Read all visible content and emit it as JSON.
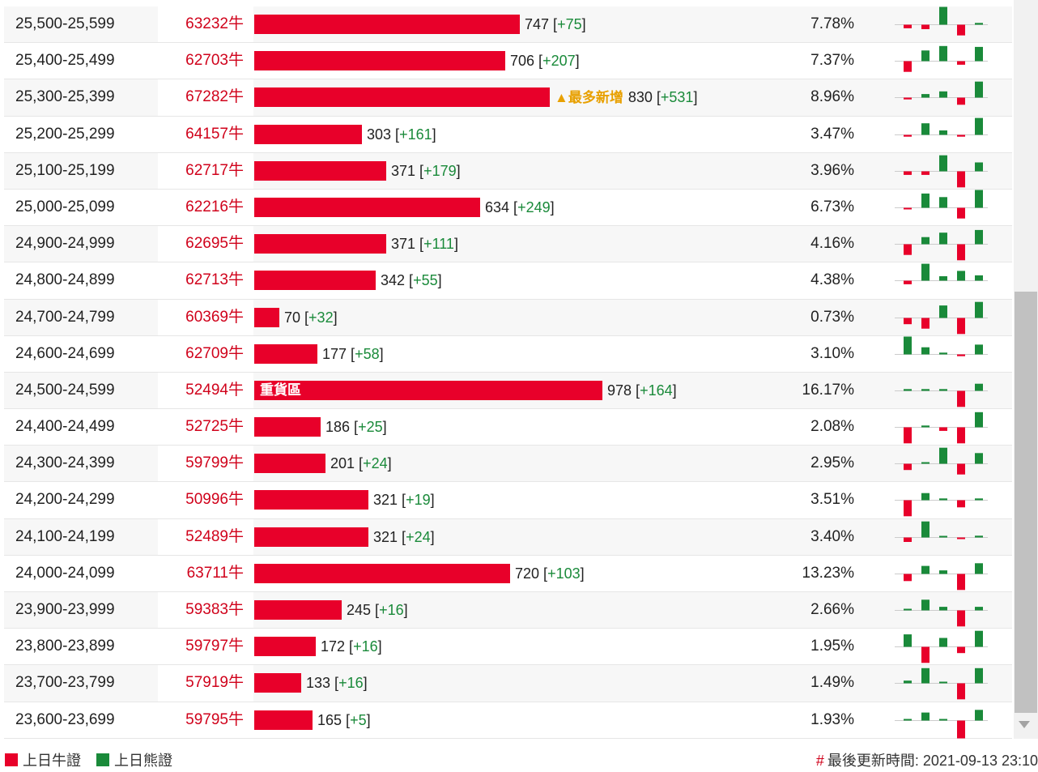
{
  "colors": {
    "bull": "#e8002a",
    "bear": "#1a8a3a",
    "badge": "#e8a000"
  },
  "legend": {
    "bull": "上日牛證",
    "bear": "上日熊證"
  },
  "update": {
    "hash": "#",
    "label": "最後更新時間: 2021-09-13 23:10"
  },
  "rows": [
    {
      "range": "25,500-25,599",
      "code": "63232牛",
      "count": "747",
      "change": "+75",
      "pct": "7.78%",
      "spark": [
        -0.2,
        -0.25,
        1.0,
        -0.6,
        0.1
      ]
    },
    {
      "range": "25,400-25,499",
      "code": "62703牛",
      "count": "706",
      "change": "+207",
      "pct": "7.37%",
      "spark": [
        -0.6,
        0.6,
        0.85,
        -0.2,
        0.8
      ]
    },
    {
      "range": "25,300-25,399",
      "code": "67282牛",
      "count": "830",
      "change": "+531",
      "pct": "8.96%",
      "badge": "▲最多新增",
      "spark": [
        -0.1,
        0.2,
        0.35,
        -0.4,
        0.9
      ]
    },
    {
      "range": "25,200-25,299",
      "code": "64157牛",
      "count": "303",
      "change": "+161",
      "pct": "3.47%",
      "spark": [
        -0.1,
        0.65,
        0.25,
        -0.1,
        0.95
      ]
    },
    {
      "range": "25,100-25,199",
      "code": "62717牛",
      "count": "371",
      "change": "+179",
      "pct": "3.96%",
      "spark": [
        -0.2,
        -0.2,
        0.9,
        -0.9,
        0.5
      ]
    },
    {
      "range": "25,000-25,099",
      "code": "62216牛",
      "count": "634",
      "change": "+249",
      "pct": "6.73%",
      "spark": [
        -0.05,
        0.8,
        0.6,
        -0.6,
        1.0
      ]
    },
    {
      "range": "24,900-24,999",
      "code": "62695牛",
      "count": "371",
      "change": "+111",
      "pct": "4.16%",
      "spark": [
        -0.6,
        0.4,
        0.65,
        -0.9,
        0.8
      ]
    },
    {
      "range": "24,800-24,899",
      "code": "62713牛",
      "count": "342",
      "change": "+55",
      "pct": "4.38%",
      "spark": [
        -0.2,
        0.95,
        0.25,
        0.55,
        0.3
      ]
    },
    {
      "range": "24,700-24,799",
      "code": "60369牛",
      "count": "70",
      "change": "+32",
      "pct": "0.73%",
      "spark": [
        -0.35,
        -0.6,
        0.7,
        -0.9,
        0.9
      ]
    },
    {
      "range": "24,600-24,699",
      "code": "62709牛",
      "count": "177",
      "change": "+58",
      "pct": "3.10%",
      "spark": [
        1.0,
        0.4,
        0.1,
        -0.1,
        0.55
      ]
    },
    {
      "range": "24,500-24,599",
      "code": "52494牛",
      "count": "978",
      "change": "+164",
      "pct": "16.17%",
      "tag": "重貨區",
      "spark": [
        0.1,
        0.1,
        0.1,
        -0.9,
        0.4
      ]
    },
    {
      "range": "24,400-24,499",
      "code": "52725牛",
      "count": "186",
      "change": "+25",
      "pct": "2.08%",
      "spark": [
        -0.9,
        0.1,
        -0.2,
        -0.9,
        0.85
      ]
    },
    {
      "range": "24,300-24,399",
      "code": "59799牛",
      "count": "201",
      "change": "+24",
      "pct": "2.95%",
      "spark": [
        -0.35,
        0.05,
        0.9,
        -0.6,
        0.6
      ]
    },
    {
      "range": "24,200-24,299",
      "code": "50996牛",
      "count": "321",
      "change": "+19",
      "pct": "3.51%",
      "spark": [
        -0.9,
        0.4,
        0.1,
        -0.4,
        0.1
      ]
    },
    {
      "range": "24,100-24,199",
      "code": "52489牛",
      "count": "321",
      "change": "+24",
      "pct": "3.40%",
      "spark": [
        -0.25,
        0.9,
        0.05,
        -0.05,
        0.1
      ]
    },
    {
      "range": "24,000-24,099",
      "code": "63711牛",
      "count": "720",
      "change": "+103",
      "pct": "13.23%",
      "spark": [
        -0.4,
        0.45,
        0.2,
        -0.9,
        0.6
      ]
    },
    {
      "range": "23,900-23,999",
      "code": "59383牛",
      "count": "245",
      "change": "+16",
      "pct": "2.66%",
      "spark": [
        0.05,
        0.6,
        0.2,
        -0.9,
        0.2
      ]
    },
    {
      "range": "23,800-23,899",
      "code": "59797牛",
      "count": "172",
      "change": "+16",
      "pct": "1.95%",
      "spark": [
        0.7,
        -0.9,
        0.5,
        -0.35,
        0.9
      ]
    },
    {
      "range": "23,700-23,799",
      "code": "57919牛",
      "count": "133",
      "change": "+16",
      "pct": "1.49%",
      "spark": [
        0.15,
        0.85,
        0.0,
        -0.9,
        0.85
      ]
    },
    {
      "range": "23,600-23,699",
      "code": "59795牛",
      "count": "165",
      "change": "+5",
      "pct": "1.93%",
      "spark": [
        0.0,
        0.45,
        0.0,
        -1.0,
        0.6
      ]
    }
  ]
}
